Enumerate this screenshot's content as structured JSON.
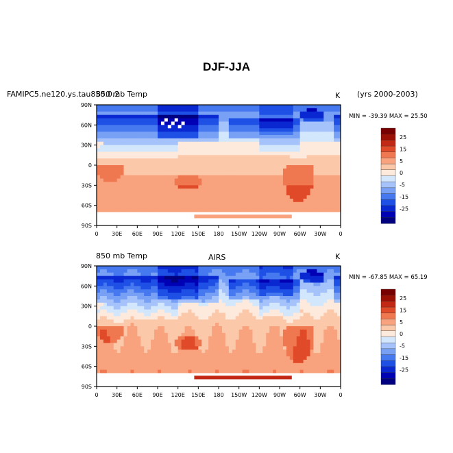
{
  "title": "DJF-JJA",
  "color_scale": [
    "#000080",
    "#0000b4",
    "#0a28d2",
    "#1e50e6",
    "#4678f0",
    "#78a0f5",
    "#a5c3fa",
    "#d2e6fc",
    "#fdeadc",
    "#fcc8aa",
    "#f8a27e",
    "#f07850",
    "#e04a28",
    "#c22814",
    "#9a1004",
    "#780000"
  ],
  "colorbar_labels": [
    "25",
    "15",
    "5",
    "0",
    "-5",
    "-15",
    "-25"
  ],
  "lon_labels": [
    "0",
    "30E",
    "60E",
    "90E",
    "120E",
    "150E",
    "180",
    "150W",
    "120W",
    "90W",
    "60W",
    "30W",
    "0"
  ],
  "lat_labels": [
    "90N",
    "60N",
    "30N",
    "0",
    "30S",
    "60S",
    "90S"
  ],
  "panels": [
    {
      "left_title": "FAMIPC5.ne120.ys.tau850.0.2",
      "center_title": "",
      "variable_title": "850 mb Temp",
      "units": "K",
      "years": "(yrs 2000-2003)",
      "min_max": "MIN = -39.39 MAX =  25.50"
    },
    {
      "left_title": "",
      "center_title": "AIRS",
      "variable_title": "850 mb Temp",
      "units": "K",
      "years": "",
      "min_max": "MIN = -67.85 MAX =  65.19"
    }
  ]
}
